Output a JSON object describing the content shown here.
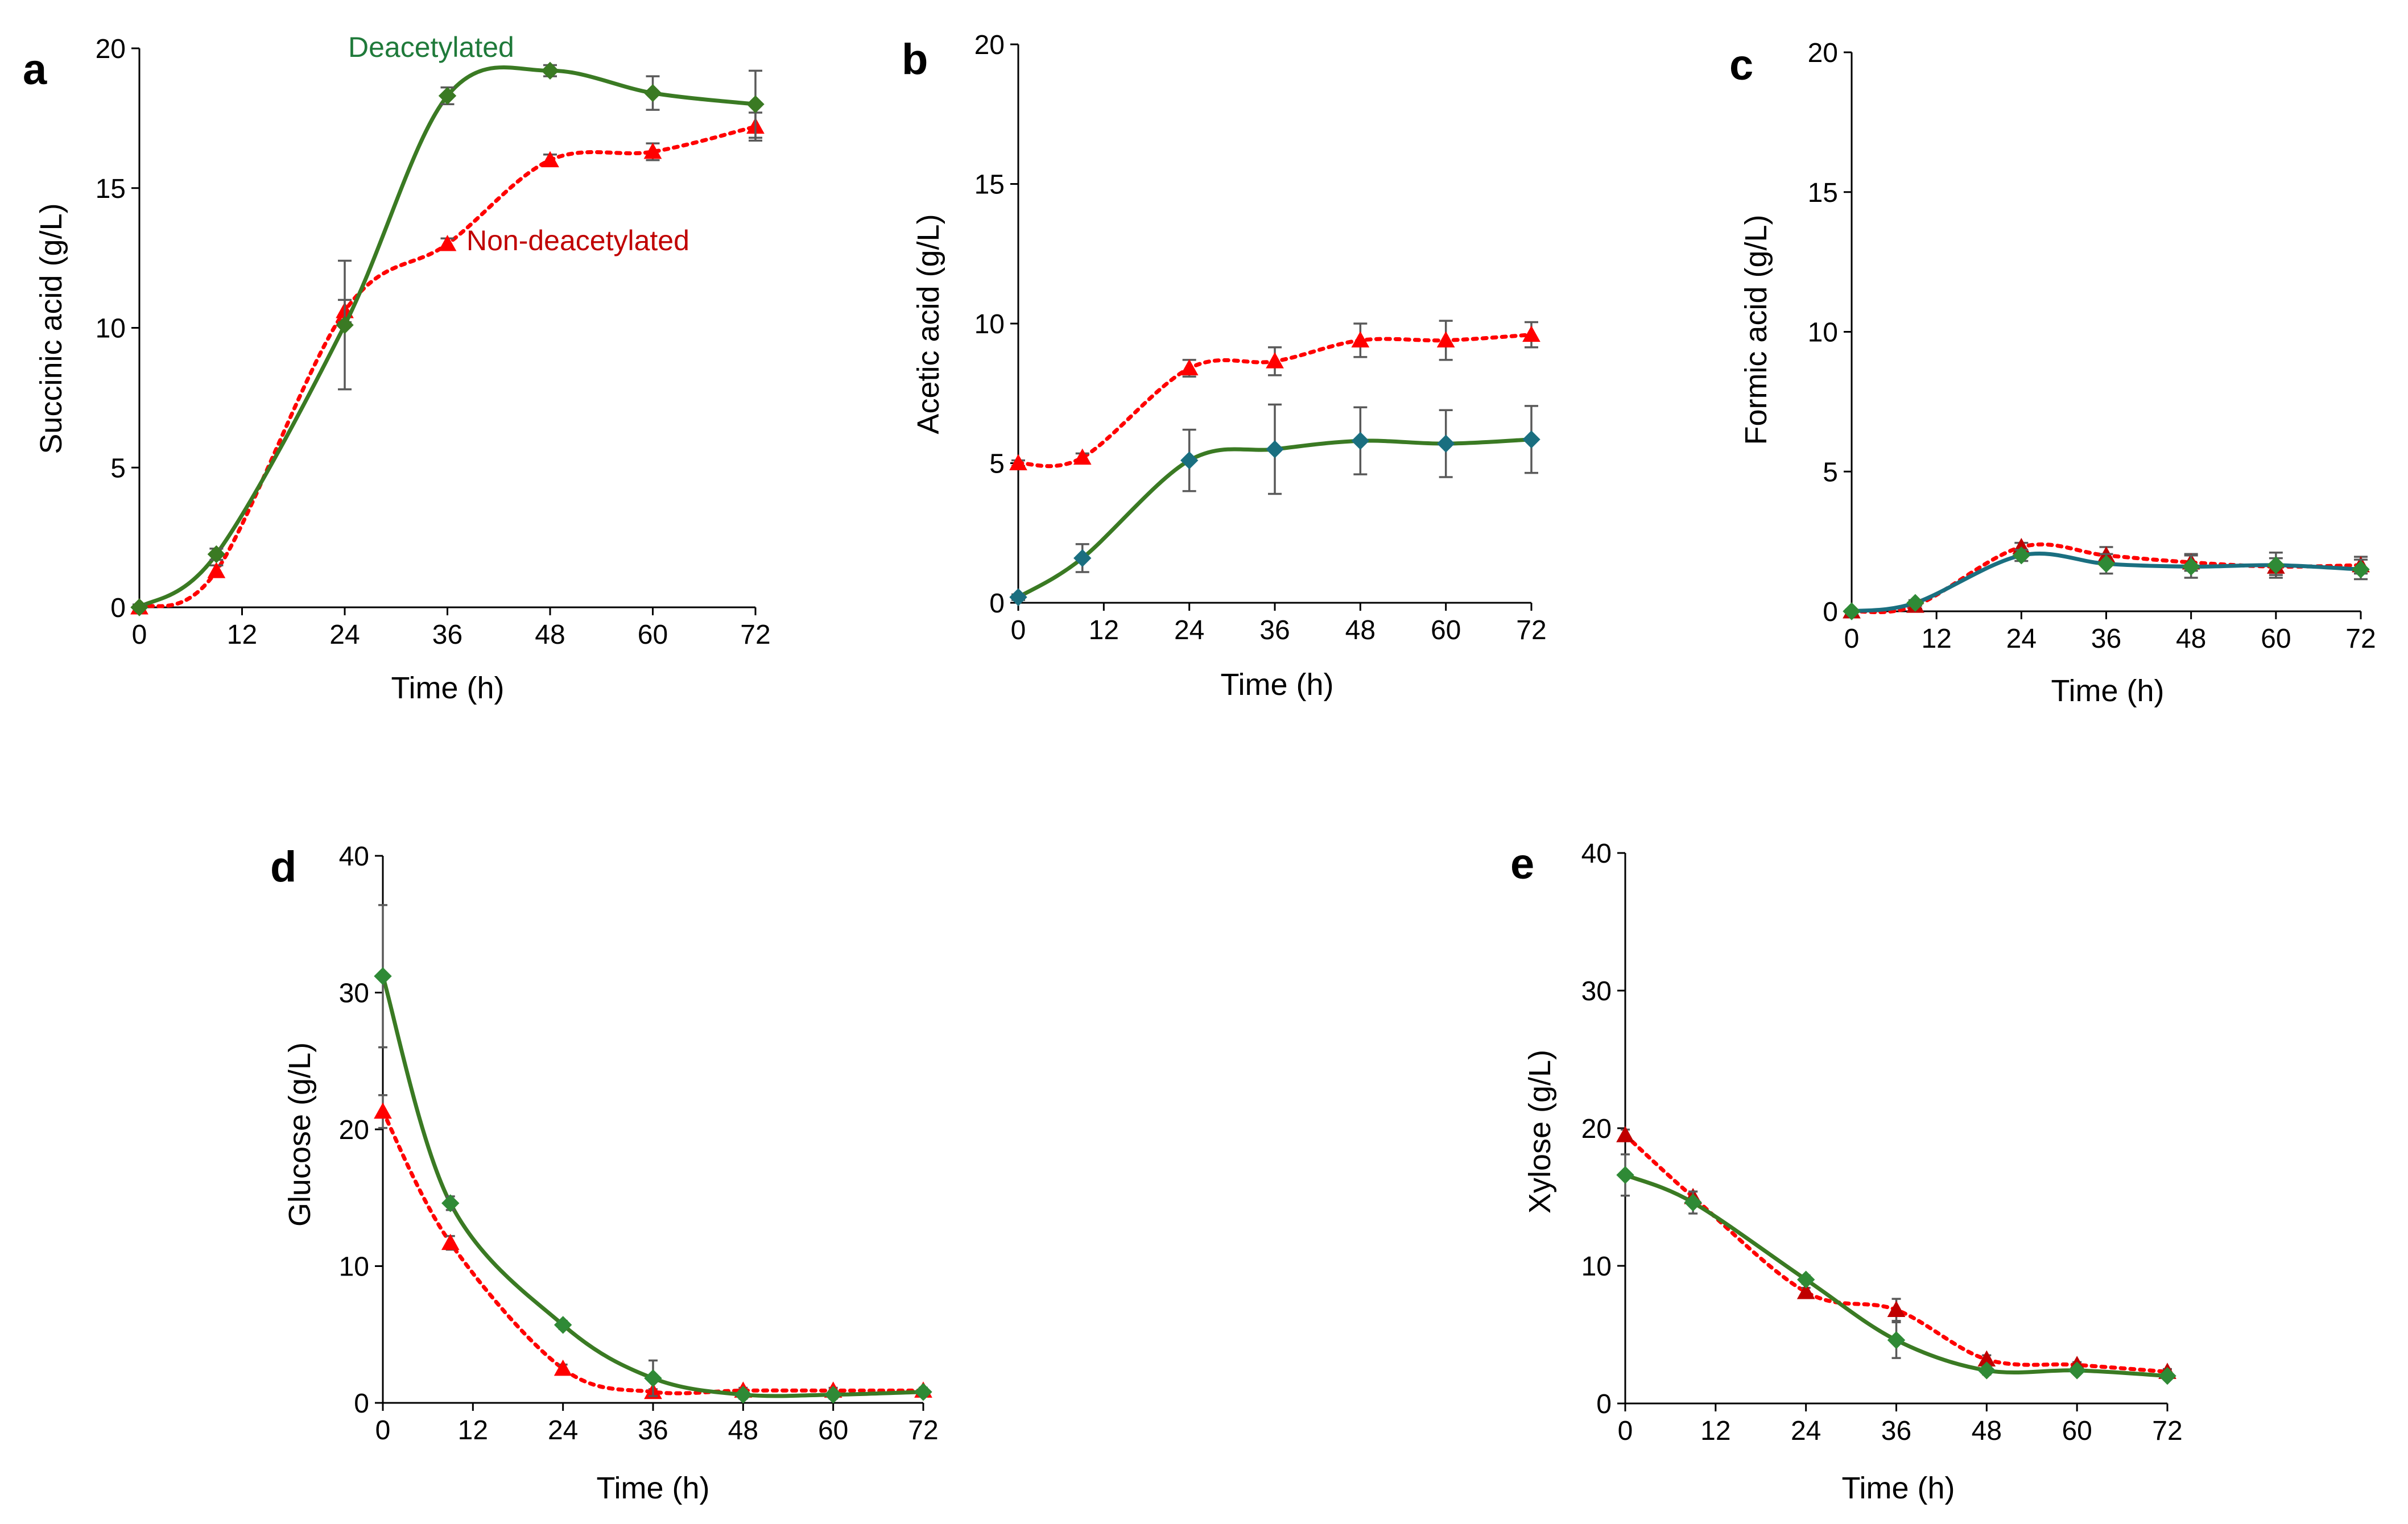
{
  "figure": {
    "colors": {
      "deacetylated": "#3a7a23",
      "deacetylated_teal": "#1a6f80",
      "deacetylated_marker": "#2f8a36",
      "non_deacetylated": "#ff0000",
      "non_deacetylated_dark": "#c00000",
      "annotation_green": "#1f7a3a",
      "annotation_red": "#c00000"
    }
  },
  "chart_data": [
    {
      "id": "a",
      "type": "line",
      "panel_letter": "a",
      "xlabel": "Time (h)",
      "ylabel": "Succinic acid (g/L)",
      "xlim": [
        0,
        72
      ],
      "ylim": [
        0,
        20
      ],
      "xticks": [
        0,
        12,
        24,
        36,
        48,
        60,
        72
      ],
      "yticks": [
        0,
        5,
        10,
        15,
        20
      ],
      "x_tick_labels": [
        "0",
        "12",
        "24",
        "36",
        "48",
        "60",
        "72"
      ],
      "y_tick_labels": [
        "0",
        "5",
        "10",
        "15",
        "20"
      ],
      "annotations": [
        {
          "text": "Deacetylated",
          "series": "Deacetylated",
          "anchor_x": 35,
          "anchor_y": 19.3
        },
        {
          "text": "Non-deacetylated",
          "series": "Non-deacetylated",
          "anchor_x": 38,
          "anchor_y": 12.9
        }
      ],
      "series": [
        {
          "name": "Deacetylated",
          "style": "solid",
          "marker": "diamond",
          "color": "#3a7a23",
          "marker_color": "#3a7a23",
          "x": [
            0,
            9,
            24,
            36,
            48,
            60,
            72
          ],
          "y": [
            0.0,
            1.9,
            10.1,
            18.3,
            19.2,
            18.4,
            18.0
          ],
          "err": [
            0.1,
            0.2,
            2.3,
            0.3,
            0.2,
            0.6,
            1.2
          ],
          "cap_err": true
        },
        {
          "name": "Non-deacetylated",
          "style": "dotted",
          "marker": "triangle",
          "color": "#ff0000",
          "marker_color": "#ff0000",
          "x": [
            0,
            9,
            24,
            36,
            48,
            60,
            72
          ],
          "y": [
            0.0,
            1.3,
            10.6,
            13.0,
            16.0,
            16.3,
            17.2
          ],
          "err": [
            0.1,
            0.2,
            0.4,
            0.2,
            0.2,
            0.3,
            0.5
          ],
          "cap_err": true
        }
      ]
    },
    {
      "id": "b",
      "type": "line",
      "panel_letter": "b",
      "xlabel": "Time (h)",
      "ylabel": "Acetic acid (g/L)",
      "xlim": [
        0,
        72
      ],
      "ylim": [
        0,
        20
      ],
      "xticks": [
        0,
        12,
        24,
        36,
        48,
        60,
        72
      ],
      "yticks": [
        0,
        5,
        10,
        15,
        20
      ],
      "x_tick_labels": [
        "0",
        "12",
        "24",
        "36",
        "48",
        "60",
        "72"
      ],
      "y_tick_labels": [
        "0",
        "5",
        "10",
        "15",
        "20"
      ],
      "series": [
        {
          "name": "Deacetylated",
          "style": "solid",
          "marker": "diamond",
          "color": "#3a7a23",
          "marker_color": "#1a6f80",
          "x": [
            0,
            9,
            24,
            36,
            48,
            60,
            72
          ],
          "y": [
            0.2,
            1.6,
            5.1,
            5.5,
            5.8,
            5.7,
            5.85
          ],
          "err": [
            0.1,
            0.5,
            1.1,
            1.6,
            1.2,
            1.2,
            1.2
          ],
          "cap_err": true
        },
        {
          "name": "Non-deacetylated",
          "style": "dotted",
          "marker": "triangle",
          "color": "#ff0000",
          "marker_color": "#ff0000",
          "x": [
            0,
            9,
            24,
            36,
            48,
            60,
            72
          ],
          "y": [
            5.0,
            5.2,
            8.4,
            8.65,
            9.4,
            9.4,
            9.6
          ],
          "err": [
            0.1,
            0.15,
            0.3,
            0.5,
            0.6,
            0.7,
            0.45
          ],
          "cap_err": true
        }
      ]
    },
    {
      "id": "c",
      "type": "line",
      "panel_letter": "c",
      "xlabel": "Time (h)",
      "ylabel": "Formic acid (g/L)",
      "xlim": [
        0,
        72
      ],
      "ylim": [
        0,
        20
      ],
      "xticks": [
        0,
        12,
        24,
        36,
        48,
        60,
        72
      ],
      "yticks": [
        0,
        5,
        10,
        15,
        20
      ],
      "x_tick_labels": [
        "0",
        "12",
        "24",
        "36",
        "48",
        "60",
        "72"
      ],
      "y_tick_labels": [
        "0",
        "5",
        "10",
        "15",
        "20"
      ],
      "series": [
        {
          "name": "Deacetylated",
          "style": "solid",
          "marker": "diamond",
          "color": "#1a6f80",
          "marker_color": "#2f8a36",
          "x": [
            0,
            9,
            24,
            36,
            48,
            60,
            72
          ],
          "y": [
            0.0,
            0.3,
            2.0,
            1.7,
            1.6,
            1.65,
            1.5
          ],
          "err": [
            0.05,
            0.1,
            0.2,
            0.35,
            0.4,
            0.45,
            0.35
          ],
          "cap_err": true
        },
        {
          "name": "Non-deacetylated",
          "style": "dotted",
          "marker": "triangle",
          "color": "#ff0000",
          "marker_color": "#c00000",
          "x": [
            0,
            9,
            24,
            36,
            48,
            60,
            72
          ],
          "y": [
            0.0,
            0.2,
            2.3,
            2.0,
            1.75,
            1.6,
            1.65
          ],
          "err": [
            0.05,
            0.1,
            0.15,
            0.3,
            0.3,
            0.3,
            0.3
          ],
          "cap_err": true
        }
      ]
    },
    {
      "id": "d",
      "type": "line",
      "panel_letter": "d",
      "xlabel": "Time (h)",
      "ylabel": "Glucose (g/L)",
      "xlim": [
        0,
        72
      ],
      "ylim": [
        0,
        40
      ],
      "xticks": [
        0,
        12,
        24,
        36,
        48,
        60,
        72
      ],
      "yticks": [
        0,
        10,
        20,
        30,
        40
      ],
      "x_tick_labels": [
        "0",
        "12",
        "24",
        "36",
        "48",
        "60",
        "72"
      ],
      "y_tick_labels": [
        "0",
        "10",
        "20",
        "30",
        "40"
      ],
      "series": [
        {
          "name": "Deacetylated",
          "style": "solid",
          "marker": "diamond",
          "color": "#3a7a23",
          "marker_color": "#2f8a36",
          "x": [
            0,
            9,
            24,
            36,
            48,
            60,
            72
          ],
          "y": [
            31.2,
            14.6,
            5.7,
            1.8,
            0.6,
            0.6,
            0.8
          ],
          "err": [
            5.2,
            0.5,
            0.3,
            1.3,
            0.3,
            0.3,
            0.3
          ],
          "cap_err": false
        },
        {
          "name": "Non-deacetylated",
          "style": "dotted",
          "marker": "triangle",
          "color": "#ff0000",
          "marker_color": "#ff0000",
          "x": [
            0,
            9,
            24,
            36,
            48,
            60,
            72
          ],
          "y": [
            21.3,
            11.7,
            2.5,
            0.8,
            0.9,
            0.9,
            0.9
          ],
          "err": [
            1.2,
            0.5,
            0.3,
            0.2,
            0.2,
            0.2,
            0.2
          ],
          "cap_err": false
        }
      ]
    },
    {
      "id": "e",
      "type": "line",
      "panel_letter": "e",
      "xlabel": "Time (h)",
      "ylabel": "Xylose (g/L)",
      "xlim": [
        0,
        72
      ],
      "ylim": [
        0,
        40
      ],
      "xticks": [
        0,
        12,
        24,
        36,
        48,
        60,
        72
      ],
      "yticks": [
        0,
        10,
        20,
        30,
        40
      ],
      "x_tick_labels": [
        "0",
        "12",
        "24",
        "36",
        "48",
        "60",
        "72"
      ],
      "y_tick_labels": [
        "0",
        "10",
        "20",
        "30",
        "40"
      ],
      "series": [
        {
          "name": "Deacetylated",
          "style": "solid",
          "marker": "diamond",
          "color": "#3a7a23",
          "marker_color": "#2f8a36",
          "x": [
            0,
            9,
            24,
            36,
            48,
            60,
            72
          ],
          "y": [
            16.6,
            14.6,
            9.0,
            4.6,
            2.4,
            2.4,
            2.0
          ],
          "err": [
            1.5,
            0.8,
            0.3,
            1.3,
            0.3,
            0.2,
            0.2
          ],
          "cap_err": false
        },
        {
          "name": "Non-deacetylated",
          "style": "dotted",
          "marker": "triangle",
          "color": "#ff0000",
          "marker_color": "#c00000",
          "x": [
            0,
            9,
            24,
            36,
            48,
            60,
            72
          ],
          "y": [
            19.5,
            15.0,
            8.1,
            6.8,
            3.2,
            2.8,
            2.3
          ],
          "err": [
            0.4,
            0.4,
            0.3,
            0.8,
            0.3,
            0.2,
            0.2
          ],
          "cap_err": false
        }
      ]
    }
  ]
}
